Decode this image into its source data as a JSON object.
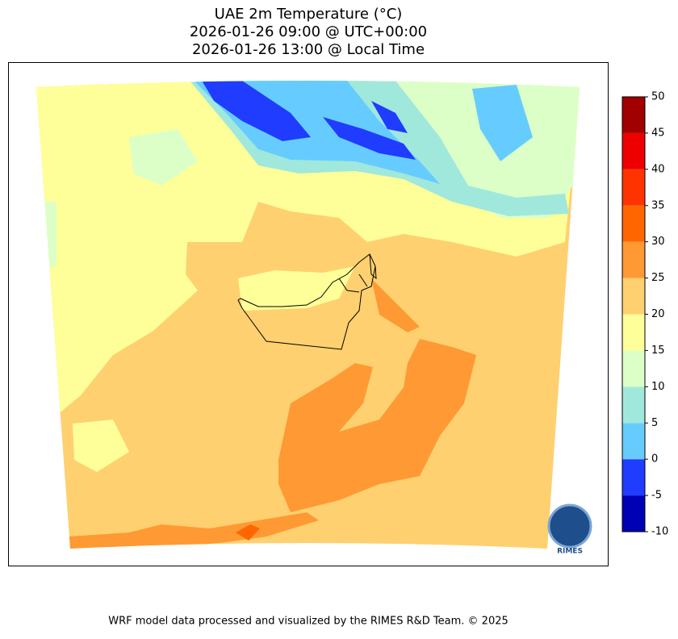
{
  "chart_data": {
    "type": "map",
    "title": [
      "UAE 2m Temperature (°C)",
      "2026-01-26 09:00 @ UTC+00:00",
      "2026-01-26 13:00 @ Local Time"
    ],
    "colorbar": {
      "ticks": [
        -10,
        -5,
        0,
        5,
        10,
        15,
        20,
        25,
        30,
        35,
        40,
        45,
        50
      ],
      "colors": [
        "#0000b4",
        "#1f3cff",
        "#66ccff",
        "#a0e8dc",
        "#dcffc8",
        "#ffff99",
        "#ffd070",
        "#ff9933",
        "#ff6600",
        "#ff3300",
        "#ee0000",
        "#a00000"
      ]
    },
    "logo_text": "RIMES",
    "footer": "WRF model data processed and visualized by the RIMES R&D Team. © 2025"
  }
}
